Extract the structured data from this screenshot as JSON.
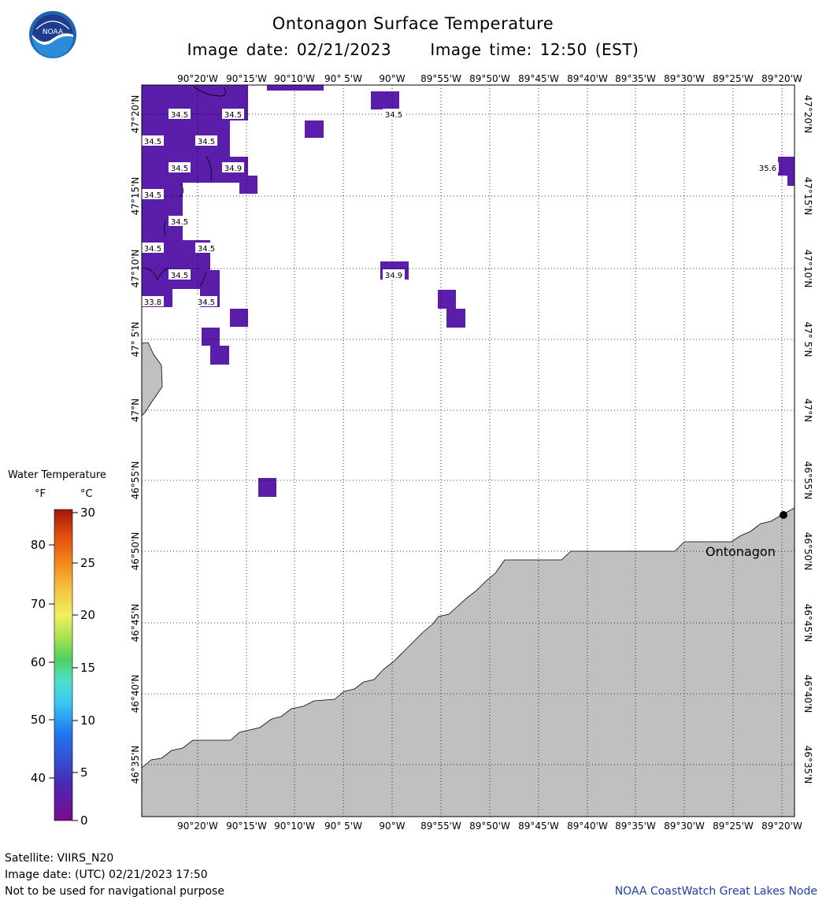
{
  "header": {
    "title": "Ontonagon Surface Temperature",
    "image_date_label": "Image date:",
    "image_date": "02/21/2023",
    "image_time_label": "Image time:",
    "image_time": "12:50 (EST)",
    "logo_text": "NOAA"
  },
  "map": {
    "lon_labels": [
      "90°20'W",
      "90°15'W",
      "90°10'W",
      "90° 5'W",
      "90°W",
      "89°55'W",
      "89°50'W",
      "89°45'W",
      "89°40'W",
      "89°35'W",
      "89°30'W",
      "89°25'W",
      "89°20'W"
    ],
    "lat_labels": [
      "47°20'N",
      "47°15'N",
      "47°10'N",
      "47° 5'N",
      "47°N",
      "46°55'N",
      "46°50'N",
      "46°45'N",
      "46°40'N",
      "46°35'N"
    ],
    "place_label": "Ontonagon",
    "water_color": "#ffffff",
    "land_color": "#c0c0c0",
    "grid_style": "dotted",
    "temperature_cells_color": "#5a1eaa",
    "temperature_labels": [
      "34.5",
      "34.5",
      "34.5",
      "34.5",
      "34.5",
      "34.9",
      "34.5",
      "35.6",
      "34.5",
      "34.5",
      "34.5",
      "34.5",
      "34.5",
      "34.9",
      "33.8",
      "34.5"
    ]
  },
  "legend": {
    "title": "Water Temperature",
    "unit_f": "°F",
    "unit_c": "°C",
    "f_ticks": [
      "80",
      "70",
      "60",
      "50",
      "40"
    ],
    "c_ticks": [
      "30",
      "25",
      "20",
      "15",
      "10",
      "5",
      "0"
    ],
    "color_low": "#7a0a8c",
    "color_high": "#a01a0a"
  },
  "footer": {
    "satellite": "Satellite: VIIRS_N20",
    "image_date_utc": "Image date: (UTC) 02/21/2023  17:50",
    "note": "Not to be used for navigational purpose",
    "credit": "NOAA CoastWatch Great Lakes Node"
  }
}
